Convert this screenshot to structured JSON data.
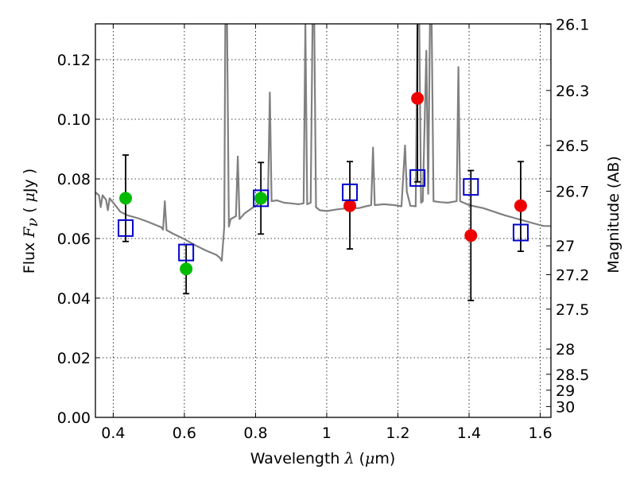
{
  "chart_data": {
    "type": "scatter",
    "xlabel": "Wavelength  λ (μm)",
    "ylabel": "Flux  Fν  ( μJy )",
    "ylabel_right": "Magnitude (AB)",
    "xlim": [
      0.35,
      1.63
    ],
    "ylim": [
      0.0,
      0.132
    ],
    "grid": true,
    "x_ticks": [
      0.4,
      0.6,
      0.8,
      1.0,
      1.2,
      1.4,
      1.6
    ],
    "x_tick_labels": [
      "0.4",
      "0.6",
      "0.8",
      "1",
      "1.2",
      "1.4",
      "1.6"
    ],
    "y_ticks": [
      0.0,
      0.02,
      0.04,
      0.06,
      0.08,
      0.1,
      0.12
    ],
    "y_tick_labels": [
      "0.00",
      "0.02",
      "0.04",
      "0.06",
      "0.08",
      "0.10",
      "0.12"
    ],
    "right_ticks": [
      {
        "mag": 26.1,
        "label": "26.1"
      },
      {
        "mag": 26.3,
        "label": "26.3"
      },
      {
        "mag": 26.5,
        "label": "26.5"
      },
      {
        "mag": 26.7,
        "label": "26.7"
      },
      {
        "mag": 27.0,
        "label": "27"
      },
      {
        "mag": 27.2,
        "label": "27.2"
      },
      {
        "mag": 27.5,
        "label": "27.5"
      },
      {
        "mag": 28.0,
        "label": "28"
      },
      {
        "mag": 28.5,
        "label": "28.5"
      },
      {
        "mag": 29.0,
        "label": "29"
      },
      {
        "mag": 30.0,
        "label": "30"
      }
    ],
    "colors": {
      "model": "#808080",
      "green": "#00bb00",
      "red": "#ee0000",
      "box": "#0000cc",
      "errorbar": "#000000"
    },
    "model_spectrum": [
      [
        0.35,
        0.0755
      ],
      [
        0.36,
        0.0745
      ],
      [
        0.365,
        0.0705
      ],
      [
        0.37,
        0.0745
      ],
      [
        0.38,
        0.073
      ],
      [
        0.385,
        0.0695
      ],
      [
        0.39,
        0.0735
      ],
      [
        0.4,
        0.072
      ],
      [
        0.41,
        0.0705
      ],
      [
        0.42,
        0.069
      ],
      [
        0.44,
        0.0678
      ],
      [
        0.47,
        0.0668
      ],
      [
        0.5,
        0.0655
      ],
      [
        0.52,
        0.0645
      ],
      [
        0.535,
        0.0638
      ],
      [
        0.54,
        0.063
      ],
      [
        0.545,
        0.0725
      ],
      [
        0.55,
        0.0628
      ],
      [
        0.57,
        0.0615
      ],
      [
        0.6,
        0.0598
      ],
      [
        0.63,
        0.0578
      ],
      [
        0.66,
        0.056
      ],
      [
        0.69,
        0.0545
      ],
      [
        0.7,
        0.0535
      ],
      [
        0.705,
        0.0525
      ],
      [
        0.712,
        0.064
      ],
      [
        0.715,
        0.132
      ],
      [
        0.72,
        0.132
      ],
      [
        0.725,
        0.064
      ],
      [
        0.73,
        0.0665
      ],
      [
        0.745,
        0.0675
      ],
      [
        0.75,
        0.0875
      ],
      [
        0.755,
        0.0665
      ],
      [
        0.77,
        0.0685
      ],
      [
        0.79,
        0.0702
      ],
      [
        0.81,
        0.0718
      ],
      [
        0.825,
        0.0725
      ],
      [
        0.835,
        0.0735
      ],
      [
        0.84,
        0.109
      ],
      [
        0.845,
        0.0725
      ],
      [
        0.86,
        0.0728
      ],
      [
        0.88,
        0.072
      ],
      [
        0.9,
        0.0718
      ],
      [
        0.92,
        0.0715
      ],
      [
        0.935,
        0.0718
      ],
      [
        0.94,
        0.132
      ],
      [
        0.945,
        0.0715
      ],
      [
        0.955,
        0.072
      ],
      [
        0.96,
        0.132
      ],
      [
        0.965,
        0.132
      ],
      [
        0.97,
        0.0705
      ],
      [
        0.98,
        0.0695
      ],
      [
        1.0,
        0.0692
      ],
      [
        1.03,
        0.0698
      ],
      [
        1.06,
        0.0702
      ],
      [
        1.09,
        0.0702
      ],
      [
        1.11,
        0.0708
      ],
      [
        1.125,
        0.0712
      ],
      [
        1.13,
        0.0905
      ],
      [
        1.135,
        0.0712
      ],
      [
        1.16,
        0.0715
      ],
      [
        1.19,
        0.0712
      ],
      [
        1.21,
        0.0708
      ],
      [
        1.22,
        0.0912
      ],
      [
        1.225,
        0.0758
      ],
      [
        1.235,
        0.071
      ],
      [
        1.25,
        0.0708
      ],
      [
        1.255,
        0.132
      ],
      [
        1.26,
        0.132
      ],
      [
        1.265,
        0.072
      ],
      [
        1.27,
        0.0725
      ],
      [
        1.28,
        0.123
      ],
      [
        1.285,
        0.075
      ],
      [
        1.29,
        0.132
      ],
      [
        1.295,
        0.132
      ],
      [
        1.3,
        0.0725
      ],
      [
        1.32,
        0.0722
      ],
      [
        1.34,
        0.072
      ],
      [
        1.365,
        0.0725
      ],
      [
        1.37,
        0.1175
      ],
      [
        1.375,
        0.0725
      ],
      [
        1.4,
        0.0712
      ],
      [
        1.44,
        0.0702
      ],
      [
        1.47,
        0.069
      ],
      [
        1.5,
        0.0678
      ],
      [
        1.53,
        0.0668
      ],
      [
        1.56,
        0.0658
      ],
      [
        1.59,
        0.0648
      ],
      [
        1.61,
        0.0642
      ],
      [
        1.63,
        0.0642
      ]
    ],
    "series": [
      {
        "marker": "circle-green",
        "points": [
          {
            "x": 0.435,
            "y": 0.0735
          },
          {
            "x": 0.605,
            "y": 0.0498
          },
          {
            "x": 0.815,
            "y": 0.0735
          }
        ]
      },
      {
        "marker": "circle-red",
        "points": [
          {
            "x": 1.065,
            "y": 0.071
          },
          {
            "x": 1.255,
            "y": 0.107
          },
          {
            "x": 1.405,
            "y": 0.061
          },
          {
            "x": 1.545,
            "y": 0.071
          }
        ]
      },
      {
        "marker": "square-blue",
        "points": [
          {
            "x": 0.435,
            "y": 0.0635,
            "err_lo": 0.059,
            "err_hi": 0.088
          },
          {
            "x": 0.605,
            "y": 0.0553,
            "err_lo": 0.0415,
            "err_hi": 0.058
          },
          {
            "x": 0.815,
            "y": 0.0735,
            "err_lo": 0.0615,
            "err_hi": 0.0855
          },
          {
            "x": 1.065,
            "y": 0.0755,
            "err_lo": 0.0565,
            "err_hi": 0.0858
          },
          {
            "x": 1.255,
            "y": 0.0803,
            "err_lo": 0.079,
            "err_hi": 0.132
          },
          {
            "x": 1.405,
            "y": 0.0773,
            "err_lo": 0.0392,
            "err_hi": 0.0828
          },
          {
            "x": 1.545,
            "y": 0.062,
            "err_lo": 0.0557,
            "err_hi": 0.0858
          }
        ]
      }
    ]
  }
}
